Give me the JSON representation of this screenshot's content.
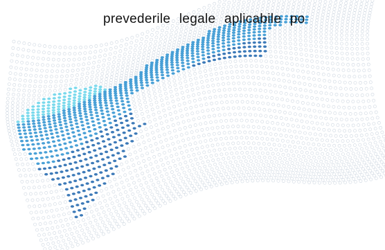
{
  "document": {
    "text_line": "prevederile legale aplicabile po"
  },
  "graphic": {
    "description_icon": "dotted-wave-map-graphic",
    "colors": {
      "mesh": "#c9d3de",
      "dot_light": "#6fd3ea",
      "dot_mid": "#3a86c8",
      "dot_dark": "#1f4f8a",
      "dot_gray": "#8a97a8"
    }
  }
}
